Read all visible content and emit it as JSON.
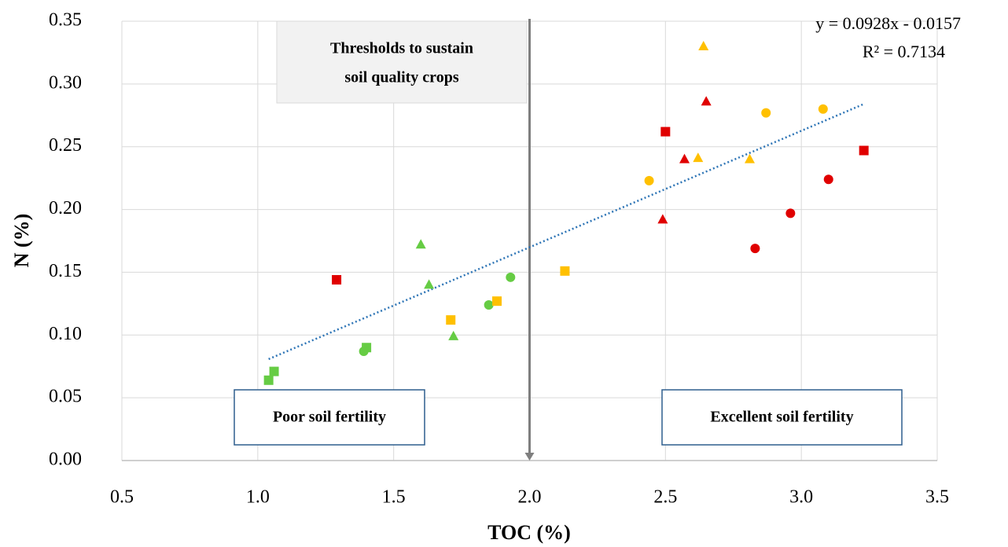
{
  "chart_data": {
    "type": "scatter",
    "x_label": "TOC (%)",
    "y_label": "N (%)",
    "xlim": [
      0.5,
      3.5
    ],
    "ylim": [
      0,
      0.35
    ],
    "xticks": [
      0.5,
      {
        "value": 1,
        "label": "1.0"
      },
      1.5,
      {
        "value": 2,
        "label": "2.0"
      },
      2.5,
      {
        "value": 3,
        "label": "3.0"
      },
      3.5
    ],
    "yticks": [
      {
        "value": 0,
        "label": "0.00"
      },
      0.05,
      {
        "value": 0.1,
        "label": "0.10"
      },
      0.15,
      {
        "value": 0.2,
        "label": "0.20"
      },
      0.25,
      {
        "value": 0.3,
        "label": "0.30"
      },
      0.35
    ],
    "grid": true,
    "series": [
      {
        "color": "#66cc44",
        "marker": "square",
        "x": [
          1.04,
          1.06,
          1.4
        ],
        "values": [
          0.064,
          0.071,
          0.09
        ]
      },
      {
        "color": "#66cc44",
        "marker": "circle",
        "x": [
          1.39,
          1.85,
          1.93
        ],
        "values": [
          0.087,
          0.124,
          0.146
        ]
      },
      {
        "color": "#66cc44",
        "marker": "triangle",
        "x": [
          1.6,
          1.63,
          1.72
        ],
        "values": [
          0.172,
          0.14,
          0.099
        ]
      },
      {
        "color": "#ffc000",
        "marker": "square",
        "x": [
          1.71,
          1.88,
          2.13
        ],
        "values": [
          0.112,
          0.127,
          0.151
        ]
      },
      {
        "color": "#ffc000",
        "marker": "circle",
        "x": [
          2.44,
          2.87,
          3.08
        ],
        "values": [
          0.223,
          0.277,
          0.28
        ]
      },
      {
        "color": "#ffc000",
        "marker": "triangle",
        "x": [
          2.64,
          2.62,
          2.81
        ],
        "values": [
          0.33,
          0.241,
          0.24
        ]
      },
      {
        "color": "#e00000",
        "marker": "square",
        "x": [
          1.29,
          2.5,
          3.23
        ],
        "values": [
          0.144,
          0.262,
          0.247
        ]
      },
      {
        "color": "#e00000",
        "marker": "triangle",
        "x": [
          2.65,
          2.57,
          2.49
        ],
        "values": [
          0.286,
          0.24,
          0.192
        ]
      },
      {
        "color": "#e00000",
        "marker": "circle",
        "x": [
          2.83,
          2.96,
          3.1
        ],
        "values": [
          0.169,
          0.197,
          0.224
        ]
      }
    ],
    "trendline": {
      "equation": "y = 0.0928x - 0.0157",
      "r2": "R² = 0.7134",
      "slope": 0.0928,
      "intercept": -0.0157,
      "x": [
        1.04,
        3.23
      ],
      "color": "#2e75b6"
    },
    "threshold": {
      "x": 2,
      "color": "#7f7f7f",
      "label_lines": [
        "Thresholds to sustain",
        "soil quality crops"
      ]
    },
    "zones": [
      "Poor soil fertility",
      "Excellent soil fertility"
    ]
  }
}
